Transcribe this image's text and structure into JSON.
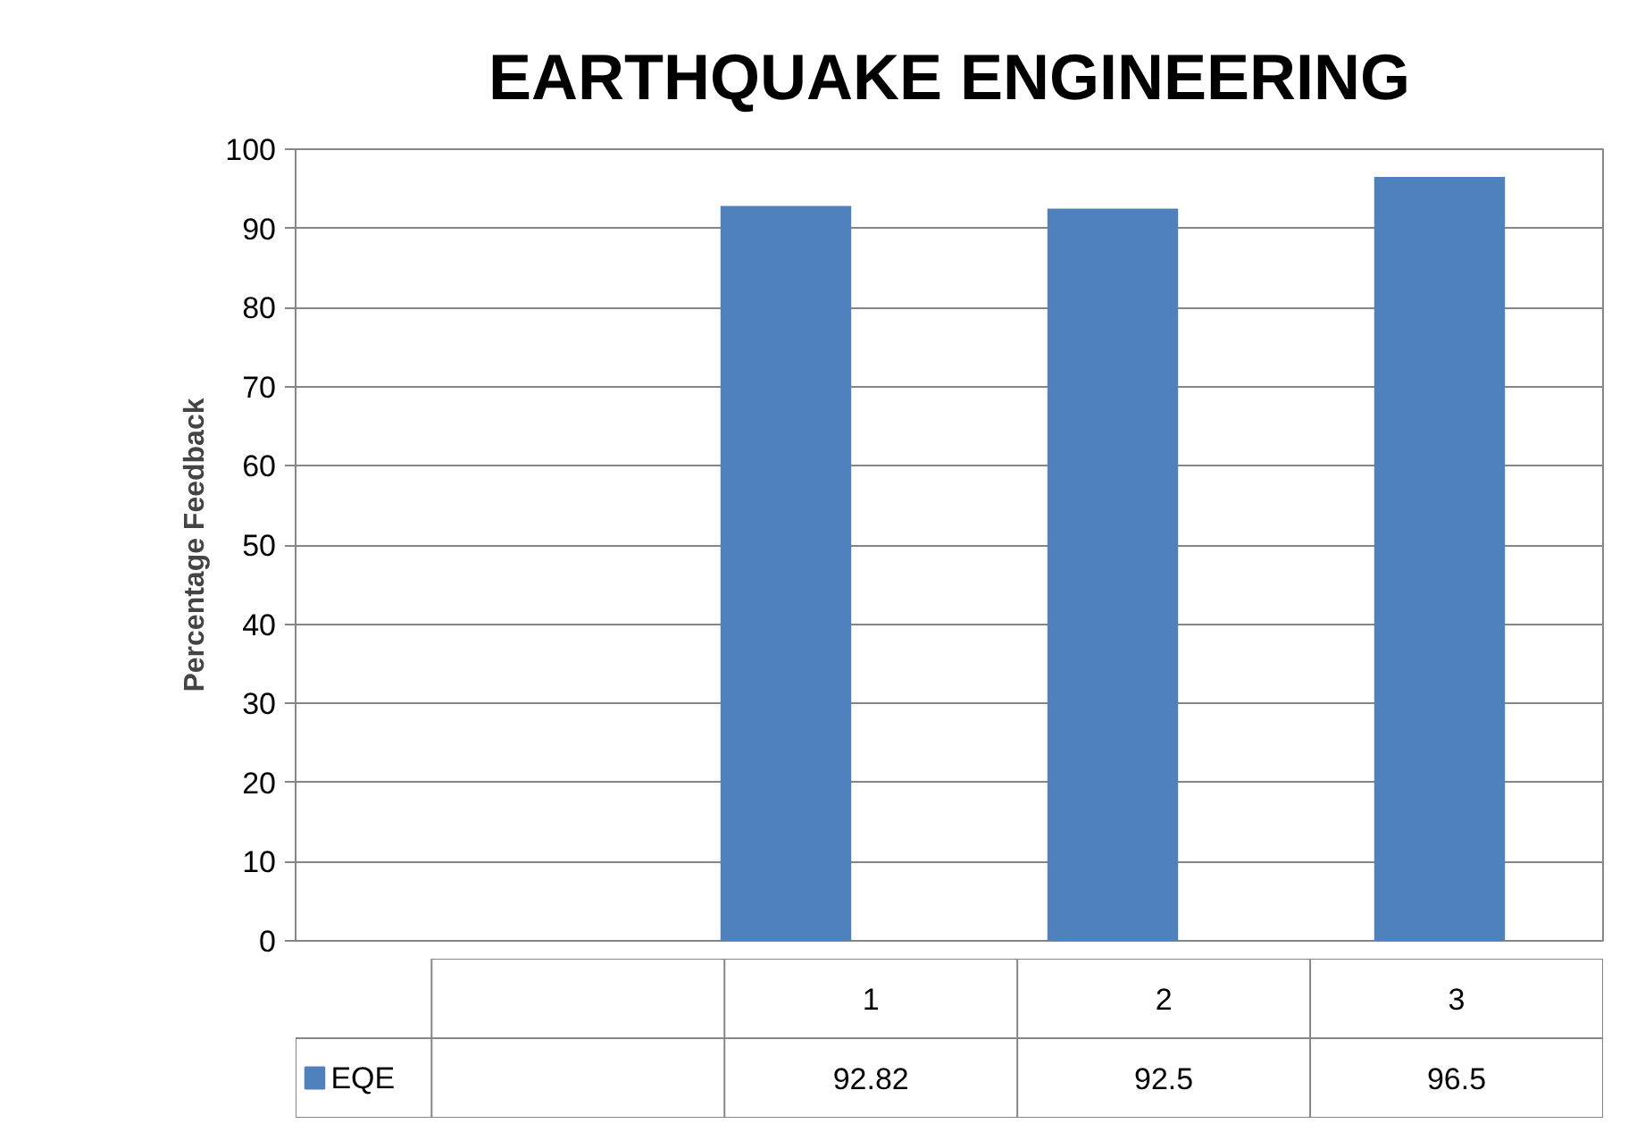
{
  "chart_data": {
    "type": "bar",
    "title": "EARTHQUAKE ENGINEERING",
    "ylabel": "Percentage Feedback",
    "categories": [
      null,
      "1",
      "2",
      "3"
    ],
    "series": [
      {
        "name": "EQE",
        "color": "#4f81bd",
        "values": [
          null,
          92.82,
          92.5,
          96.5
        ]
      }
    ],
    "ylim": [
      0,
      100
    ],
    "yticks": [
      0,
      10,
      20,
      30,
      40,
      50,
      60,
      70,
      80,
      90,
      100
    ],
    "grid": "y",
    "data_labels": true
  }
}
